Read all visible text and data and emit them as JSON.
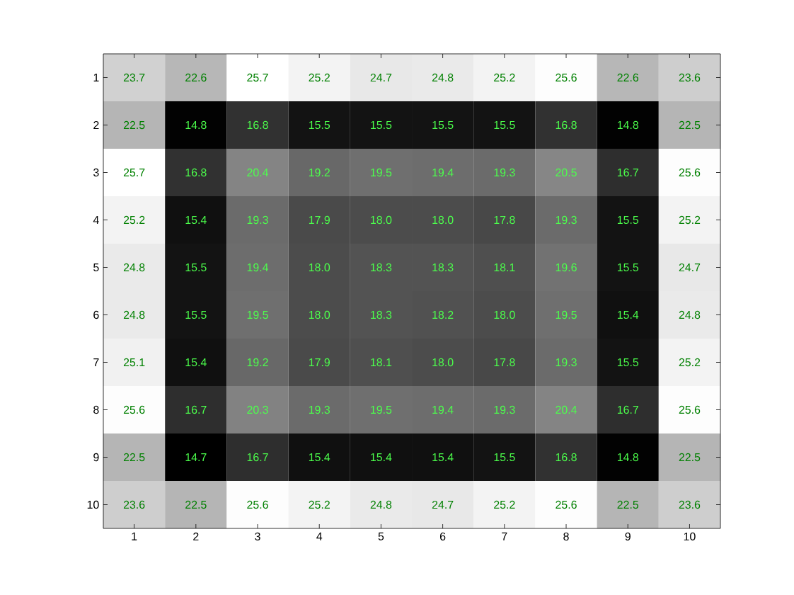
{
  "chart_data": {
    "type": "heatmap",
    "categories": [
      "1",
      "2",
      "3",
      "4",
      "5",
      "6",
      "7",
      "8",
      "9",
      "10"
    ],
    "y_categories": [
      "1",
      "2",
      "3",
      "4",
      "5",
      "6",
      "7",
      "8",
      "9",
      "10"
    ],
    "data_labels": true,
    "cells": [
      [
        23.7,
        22.6,
        25.7,
        25.2,
        24.7,
        24.8,
        25.2,
        25.6,
        22.6,
        23.6
      ],
      [
        22.5,
        14.8,
        16.8,
        15.5,
        15.5,
        15.5,
        15.5,
        16.8,
        14.8,
        22.5
      ],
      [
        25.7,
        16.8,
        20.4,
        19.2,
        19.5,
        19.4,
        19.3,
        20.5,
        16.7,
        25.6
      ],
      [
        25.2,
        15.4,
        19.3,
        17.9,
        18.0,
        18.0,
        17.8,
        19.3,
        15.5,
        25.2
      ],
      [
        24.8,
        15.5,
        19.4,
        18.0,
        18.3,
        18.3,
        18.1,
        19.6,
        15.5,
        24.7
      ],
      [
        24.8,
        15.5,
        19.5,
        18.0,
        18.3,
        18.2,
        18.0,
        19.5,
        15.4,
        24.8
      ],
      [
        25.1,
        15.4,
        19.2,
        17.9,
        18.1,
        18.0,
        17.8,
        19.3,
        15.5,
        25.2
      ],
      [
        25.6,
        16.7,
        20.3,
        19.3,
        19.5,
        19.4,
        19.3,
        20.4,
        16.7,
        25.6
      ],
      [
        22.5,
        14.7,
        16.7,
        15.4,
        15.4,
        15.4,
        15.5,
        16.8,
        14.8,
        22.5
      ],
      [
        23.6,
        22.5,
        25.6,
        25.2,
        24.8,
        24.7,
        25.2,
        25.6,
        22.5,
        23.6
      ]
    ],
    "cell_labels": [
      [
        "23.7",
        "22.6",
        "25.7",
        "25.2",
        "24.7",
        "24.8",
        "25.2",
        "25.6",
        "22.6",
        "23.6"
      ],
      [
        "22.5",
        "14.8",
        "16.8",
        "15.5",
        "15.5",
        "15.5",
        "15.5",
        "16.8",
        "14.8",
        "22.5"
      ],
      [
        "25.7",
        "16.8",
        "20.4",
        "19.2",
        "19.5",
        "19.4",
        "19.3",
        "20.5",
        "16.7",
        "25.6"
      ],
      [
        "25.2",
        "15.4",
        "19.3",
        "17.9",
        "18.0",
        "18.0",
        "17.8",
        "19.3",
        "15.5",
        "25.2"
      ],
      [
        "24.8",
        "15.5",
        "19.4",
        "18.0",
        "18.3",
        "18.3",
        "18.1",
        "19.6",
        "15.5",
        "24.7"
      ],
      [
        "24.8",
        "15.5",
        "19.5",
        "18.0",
        "18.3",
        "18.2",
        "18.0",
        "19.5",
        "15.4",
        "24.8"
      ],
      [
        "25.1",
        "15.4",
        "19.2",
        "17.9",
        "18.1",
        "18.0",
        "17.8",
        "19.3",
        "15.5",
        "25.2"
      ],
      [
        "25.6",
        "16.7",
        "20.3",
        "19.3",
        "19.5",
        "19.4",
        "19.3",
        "20.4",
        "16.7",
        "25.6"
      ],
      [
        "22.5",
        "14.7",
        "16.7",
        "15.4",
        "15.4",
        "15.4",
        "15.5",
        "16.8",
        "14.8",
        "22.5"
      ],
      [
        "23.6",
        "22.5",
        "25.6",
        "25.2",
        "24.8",
        "24.7",
        "25.2",
        "25.6",
        "22.5",
        "23.6"
      ]
    ]
  }
}
